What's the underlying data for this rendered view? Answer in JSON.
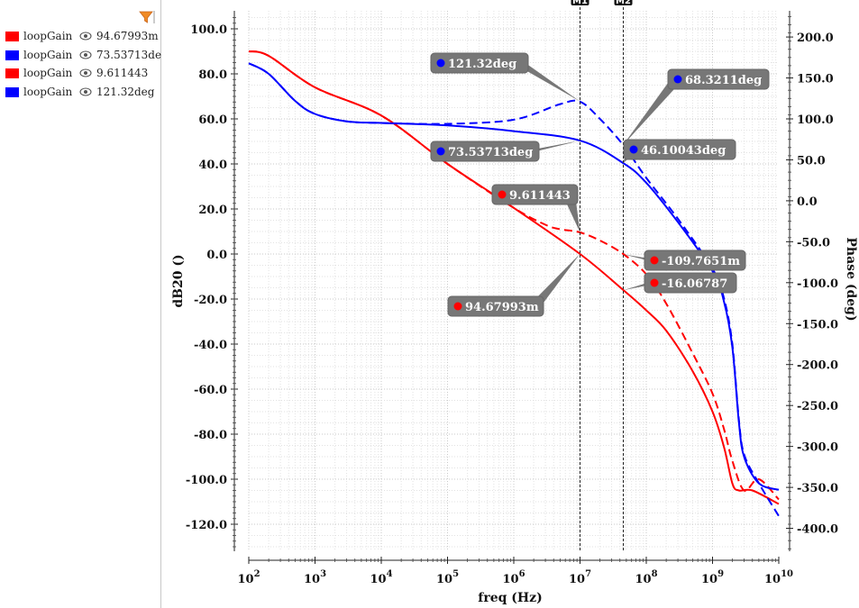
{
  "legend": {
    "items": [
      {
        "name": "loopGain",
        "value": "94.67993m",
        "color": "#ff0000"
      },
      {
        "name": "loopGain",
        "value": "73.53713de",
        "color": "#0000ff"
      },
      {
        "name": "loopGain",
        "value": "9.611443",
        "color": "#ff0000"
      },
      {
        "name": "loopGain",
        "value": "121.32deg",
        "color": "#0000ff"
      }
    ],
    "filter_icon": "filter-icon",
    "visibility_icon": "eye-icon"
  },
  "chart_data": {
    "type": "line",
    "xlabel": "freq (Hz)",
    "ylabel_left": "dB20 ()",
    "ylabel_right": "Phase (deg)",
    "xscale": "log",
    "xlim": [
      100,
      10000000000
    ],
    "ylim_left": [
      -132,
      108
    ],
    "ylim_right": [
      -428,
      232
    ],
    "grid": true,
    "x_ticks": [
      {
        "base": "10",
        "exp": "2",
        "value": 100
      },
      {
        "base": "10",
        "exp": "3",
        "value": 1000
      },
      {
        "base": "10",
        "exp": "4",
        "value": 10000
      },
      {
        "base": "10",
        "exp": "5",
        "value": 100000
      },
      {
        "base": "10",
        "exp": "6",
        "value": 1000000
      },
      {
        "base": "10",
        "exp": "7",
        "value": 10000000
      },
      {
        "base": "10",
        "exp": "8",
        "value": 100000000
      },
      {
        "base": "10",
        "exp": "9",
        "value": 1000000000
      },
      {
        "base": "10",
        "exp": "10",
        "value": 10000000000
      }
    ],
    "y_left_ticks": [
      "100.0",
      "80.0",
      "60.0",
      "40.0",
      "20.0",
      "0.0",
      "-20.0",
      "-40.0",
      "-60.0",
      "-80.0",
      "-100.0",
      "-120.0"
    ],
    "y_right_ticks": [
      "200.0",
      "150.0",
      "100.0",
      "50.0",
      "0.0",
      "-50.0",
      "-100.0",
      "-150.0",
      "-200.0",
      "-250.0",
      "-300.0",
      "-350.0",
      "-400.0"
    ],
    "cursors": [
      {
        "label": "M1",
        "x": 10000000
      },
      {
        "label": "M2",
        "x": 45000000
      }
    ],
    "series": [
      {
        "axis": "left",
        "color": "#ff0000",
        "dash": false,
        "x": [
          100,
          200,
          1000,
          10000,
          100000,
          1000000,
          10000000,
          45000000,
          100000000,
          200000000,
          500000000,
          1000000000,
          1500000000,
          2000000000,
          2500000000,
          4000000000,
          10000000000
        ],
        "y": [
          90,
          88,
          74,
          61.5,
          40,
          20.5,
          0,
          -16,
          -25,
          -34,
          -52,
          -70,
          -86,
          -102,
          -105,
          -105,
          -111
        ]
      },
      {
        "axis": "left",
        "color": "#ff0000",
        "dash": true,
        "x": [
          100,
          200,
          1000,
          10000,
          100000,
          1000000,
          3000000,
          5000000,
          10000000,
          20000000,
          45000000,
          100000000,
          200000000,
          500000000,
          1000000000,
          1500000000,
          2000000000,
          3000000000,
          5000000000,
          10000000000
        ],
        "y": [
          90,
          88,
          74,
          61.5,
          40,
          20.5,
          13,
          11,
          9.6,
          6,
          0,
          -9,
          -22,
          -44,
          -62,
          -78,
          -92,
          -105,
          -100,
          -109
        ]
      },
      {
        "axis": "right",
        "color": "#0000ff",
        "dash": false,
        "x": [
          100,
          200,
          500,
          1000,
          3000,
          10000,
          100000,
          1000000,
          10000000,
          45000000,
          100000000,
          300000000,
          1000000000,
          1500000000,
          2000000000,
          2500000000,
          3000000000,
          5000000000,
          10000000000
        ],
        "y": [
          168,
          155,
          122,
          106,
          97,
          95,
          92,
          85,
          73.5,
          46,
          22,
          -26,
          -86,
          -124,
          -180,
          -270,
          -313,
          -345,
          -353
        ]
      },
      {
        "axis": "right",
        "color": "#0000ff",
        "dash": true,
        "x": [
          100,
          200,
          500,
          1000,
          3000,
          10000,
          100000,
          1000000,
          5000000,
          10000000,
          20000000,
          45000000,
          100000000,
          300000000,
          1000000000,
          1500000000,
          2000000000,
          2500000000,
          3000000000,
          5000000000,
          10000000000
        ],
        "y": [
          168,
          155,
          122,
          106,
          97,
          95,
          94,
          99,
          118,
          121,
          100,
          68,
          28,
          -22,
          -83,
          -120,
          -176,
          -267,
          -310,
          -345,
          -385
        ]
      }
    ],
    "annotations": [
      {
        "text": "121.32deg",
        "color": "#0000ff",
        "target_x": 10000000,
        "target_y": 121.32,
        "axis": "right"
      },
      {
        "text": "68.3211deg",
        "color": "#0000ff",
        "target_x": 45000000,
        "target_y": 68.3211,
        "axis": "right"
      },
      {
        "text": "73.53713deg",
        "color": "#0000ff",
        "target_x": 10000000,
        "target_y": 73.53713,
        "axis": "right"
      },
      {
        "text": "46.10043deg",
        "color": "#0000ff",
        "target_x": 45000000,
        "target_y": 46.10043,
        "axis": "right"
      },
      {
        "text": "9.611443",
        "color": "#ff0000",
        "target_x": 10000000,
        "target_y": 9.611443,
        "axis": "left"
      },
      {
        "text": "-109.7651m",
        "color": "#ff0000",
        "target_x": 45000000,
        "target_y": -0.1097651,
        "axis": "left"
      },
      {
        "text": "-16.06787",
        "color": "#ff0000",
        "target_x": 45000000,
        "target_y": -16.06787,
        "axis": "left"
      },
      {
        "text": "94.67993m",
        "color": "#ff0000",
        "target_x": 10000000,
        "target_y": 0.09467993,
        "axis": "left"
      }
    ]
  }
}
